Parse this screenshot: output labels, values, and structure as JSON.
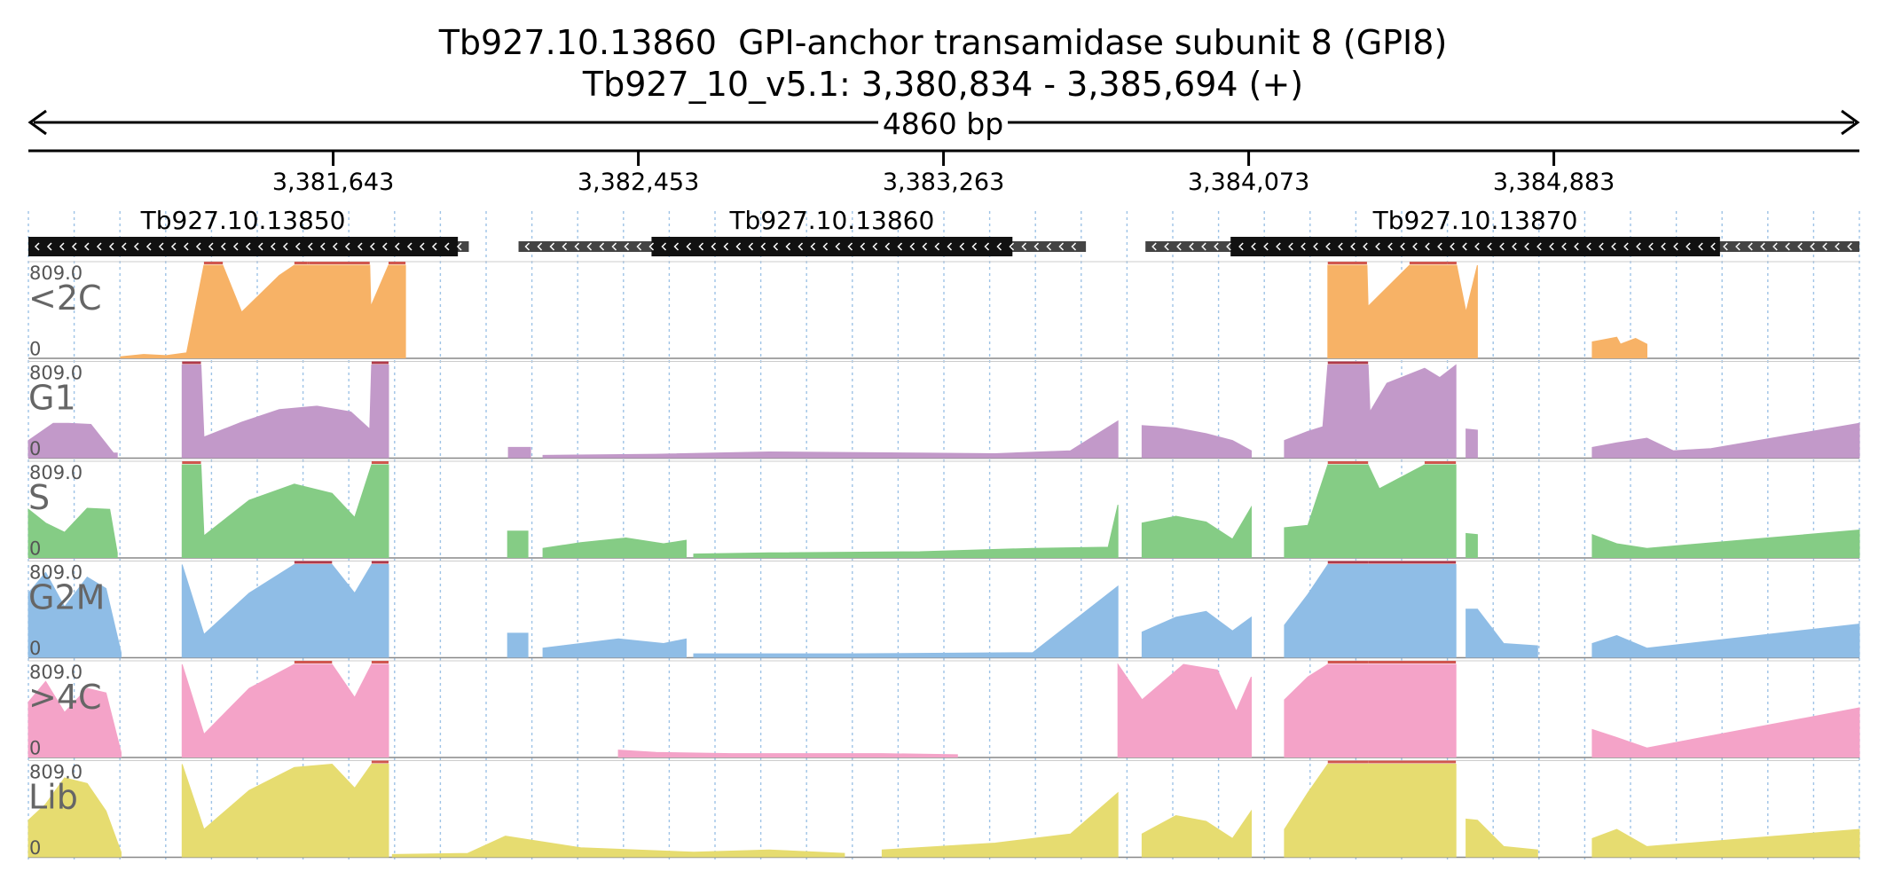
{
  "title": {
    "gene_line": "Tb927.10.13860  GPI-anchor transamidase subunit 8 (GPI8)",
    "locus_line": "Tb927_10_v5.1: 3,380,834 - 3,385,694 (+)"
  },
  "chart_data": {
    "type": "area",
    "region": {
      "start": 3380834,
      "end": 3385694,
      "length_label": "4860 bp"
    },
    "ruler_ticks": [
      {
        "pos": 3381643,
        "label": "3,381,643"
      },
      {
        "pos": 3382453,
        "label": "3,382,453"
      },
      {
        "pos": 3383263,
        "label": "3,383,263"
      },
      {
        "pos": 3384073,
        "label": "3,384,073"
      },
      {
        "pos": 3384883,
        "label": "3,384,883"
      }
    ],
    "genes": [
      {
        "name": "Tb927.10.13850",
        "strand": "-",
        "utr": [
          3380834,
          3382003
        ],
        "cds": [
          3380834,
          3381974
        ]
      },
      {
        "name": "Tb927.10.13860",
        "strand": "-",
        "utr": [
          3382135,
          3383641
        ],
        "cds": [
          3382488,
          3383446
        ]
      },
      {
        "name": "Tb927.10.13870",
        "strand": "-",
        "utr": [
          3383799,
          3385694
        ],
        "cds": [
          3384025,
          3385324
        ]
      }
    ],
    "ymax_label": "809.0",
    "ymin_label": "0",
    "ylim": [
      0,
      809
    ],
    "tracks": [
      {
        "name": "<2C",
        "color": "#f7b266",
        "clip_color": "#d0574f",
        "segments": [
          {
            "x": [
              3381079,
              3381139,
              3381142,
              3381200,
              3381254,
              3381300,
              3381350,
              3381400,
              3381450,
              3381500,
              3381540,
              3381574,
              3381580,
              3381740,
              3381743,
              3381790
            ],
            "y": [
              10,
              30,
              30,
              20,
              45,
              809,
              809,
              400,
              560,
              720,
              809,
              809,
              809,
              809,
              450,
              809
            ]
          },
          {
            "x": [
              3381790,
              3381835
            ],
            "y": [
              809,
              809
            ]
          },
          {
            "x": [
              3384283,
              3384387,
              3384390,
              3384500,
              3384600,
              3384623,
              3384625,
              3384650,
              3384680
            ],
            "y": [
              809,
              809,
              450,
              809,
              809,
              809,
              809,
              400,
              809
            ]
          },
          {
            "x": [
              3384985,
              3385050,
              3385060,
              3385100,
              3385130
            ],
            "y": [
              140,
              180,
              120,
              170,
              120
            ]
          }
        ]
      },
      {
        "name": "G1",
        "color": "#c299c9",
        "clip_color": "#b03a4a",
        "segments": [
          {
            "x": [
              3380834,
              3380900,
              3380940,
              3381000,
              3381060,
              3381070
            ],
            "y": [
              150,
              300,
              300,
              290,
              40,
              40
            ]
          },
          {
            "x": [
              3381242,
              3381292,
              3381300,
              3381400,
              3381500,
              3381600,
              3381690,
              3381740,
              3381745,
              3381790
            ],
            "y": [
              809,
              809,
              180,
              310,
              420,
              450,
              400,
              250,
              809,
              809
            ]
          },
          {
            "x": [
              3382108,
              3382167
            ],
            "y": [
              90,
              90
            ]
          },
          {
            "x": [
              3382200,
              3382500,
              3382800,
              3383200,
              3383400,
              3383600,
              3383726
            ],
            "y": [
              20,
              30,
              50,
              40,
              35,
              60,
              320
            ]
          },
          {
            "x": [
              3383790,
              3383880,
              3383960,
              3384030,
              3384080
            ],
            "y": [
              280,
              260,
              210,
              150,
              60
            ]
          },
          {
            "x": [
              3384168,
              3384230,
              3384270,
              3384283,
              3384390,
              3384395,
              3384440,
              3384540,
              3384580,
              3384623
            ],
            "y": [
              150,
              230,
              270,
              809,
              809,
              400,
              650,
              780,
              700,
              809
            ]
          },
          {
            "x": [
              3384650,
              3384680
            ],
            "y": [
              250,
              240
            ]
          },
          {
            "x": [
              3384985,
              3385050,
              3385130,
              3385200,
              3385300,
              3385694
            ],
            "y": [
              90,
              130,
              170,
              60,
              80,
              300
            ]
          }
        ]
      },
      {
        "name": "S",
        "color": "#85cc85",
        "clip_color": "#d0574f",
        "segments": [
          {
            "x": [
              3380834,
              3380880,
              3380930,
              3380990,
              3381050,
              3381070
            ],
            "y": [
              420,
              300,
              220,
              430,
              420,
              40
            ]
          },
          {
            "x": [
              3381242,
              3381292,
              3381300,
              3381420,
              3381540,
              3381640,
              3381700,
              3381745,
              3381790
            ],
            "y": [
              809,
              809,
              190,
              500,
              640,
              560,
              350,
              809,
              809
            ]
          },
          {
            "x": [
              3382106,
              3382160
            ],
            "y": [
              230,
              230
            ]
          },
          {
            "x": [
              3382200,
              3382300,
              3382420,
              3382520,
              3382580
            ],
            "y": [
              80,
              130,
              170,
              120,
              150
            ]
          },
          {
            "x": [
              3382600,
              3382800,
              3383200,
              3383500,
              3383700,
              3383726
            ],
            "y": [
              30,
              40,
              50,
              80,
              90,
              460
            ]
          },
          {
            "x": [
              3383790,
              3383880,
              3383960,
              3384030,
              3384080
            ],
            "y": [
              300,
              360,
              310,
              160,
              440
            ]
          },
          {
            "x": [
              3384168,
              3384230,
              3384283,
              3384390,
              3384420,
              3384540,
              3384623
            ],
            "y": [
              260,
              280,
              809,
              809,
              600,
              809,
              809
            ]
          },
          {
            "x": [
              3384650,
              3384680
            ],
            "y": [
              210,
              200
            ]
          },
          {
            "x": [
              3384985,
              3385050,
              3385130,
              3385694
            ],
            "y": [
              200,
              120,
              80,
              240
            ]
          }
        ]
      },
      {
        "name": "G2M",
        "color": "#8fbde6",
        "clip_color": "#b03a4a",
        "segments": [
          {
            "x": [
              3380834,
              3380880,
              3380930,
              3380990,
              3381040,
              3381080
            ],
            "y": [
              560,
              740,
              440,
              700,
              600,
              40
            ]
          },
          {
            "x": [
              3381242,
              3381300,
              3381420,
              3381540,
              3381640,
              3381700,
              3381745,
              3381790
            ],
            "y": [
              809,
              200,
              560,
              809,
              809,
              560,
              809,
              809
            ]
          },
          {
            "x": [
              3382106,
              3382160
            ],
            "y": [
              210,
              210
            ]
          },
          {
            "x": [
              3382200,
              3382400,
              3382520,
              3382580
            ],
            "y": [
              80,
              160,
              120,
              160
            ]
          },
          {
            "x": [
              3382600,
              3383000,
              3383500,
              3383726
            ],
            "y": [
              30,
              30,
              40,
              620
            ]
          },
          {
            "x": [
              3383790,
              3383880,
              3383960,
              3384030,
              3384080
            ],
            "y": [
              220,
              350,
              400,
              230,
              350
            ]
          },
          {
            "x": [
              3384168,
              3384230,
              3384283,
              3384390,
              3384623
            ],
            "y": [
              280,
              550,
              809,
              809,
              809
            ]
          },
          {
            "x": [
              3384650,
              3384680,
              3384750,
              3384840
            ],
            "y": [
              420,
              420,
              120,
              100
            ]
          },
          {
            "x": [
              3384985,
              3385050,
              3385130,
              3385694
            ],
            "y": [
              120,
              190,
              80,
              290
            ]
          }
        ]
      },
      {
        "name": ">4C",
        "color": "#f4a3c8",
        "clip_color": "#d0574f",
        "segments": [
          {
            "x": [
              3380834,
              3380880,
              3380930,
              3380990,
              3381040,
              3381080
            ],
            "y": [
              480,
              660,
              390,
              600,
              560,
              40
            ]
          },
          {
            "x": [
              3381242,
              3381300,
              3381420,
              3381540,
              3381640,
              3381700,
              3381745,
              3381790
            ],
            "y": [
              809,
              200,
              600,
              809,
              809,
              520,
              809,
              809
            ]
          },
          {
            "x": [
              3382400,
              3382500,
              3382700,
              3383100,
              3383300
            ],
            "y": [
              60,
              40,
              30,
              30,
              20
            ]
          },
          {
            "x": [
              3383726,
              3383790,
              3383900,
              3383990,
              3384040,
              3384080
            ],
            "y": [
              809,
              500,
              809,
              760,
              400,
              700
            ]
          },
          {
            "x": [
              3384168,
              3384230,
              3384283,
              3384390,
              3384623
            ],
            "y": [
              500,
              700,
              809,
              809,
              809
            ]
          },
          {
            "x": [
              3384985,
              3385050,
              3385130,
              3385694
            ],
            "y": [
              240,
              170,
              80,
              430
            ]
          }
        ]
      },
      {
        "name": "Lib",
        "color": "#e6dc70",
        "clip_color": "#d0574f",
        "segments": [
          {
            "x": [
              3380834,
              3380880,
              3380930,
              3380990,
              3381040,
              3381080
            ],
            "y": [
              320,
              460,
              690,
              640,
              400,
              40
            ]
          },
          {
            "x": [
              3381242,
              3381300,
              3381420,
              3381540,
              3381640,
              3381700,
              3381745,
              3381790
            ],
            "y": [
              809,
              240,
              580,
              780,
              809,
              600,
              809,
              809
            ]
          },
          {
            "x": [
              3381800,
              3382000,
              3382100,
              3382300,
              3382600,
              3382800,
              3383000
            ],
            "y": [
              20,
              30,
              180,
              80,
              40,
              60,
              30
            ]
          },
          {
            "x": [
              3383100,
              3383400,
              3383600,
              3383726
            ],
            "y": [
              60,
              120,
              200,
              560
            ]
          },
          {
            "x": [
              3383790,
              3383880,
              3383960,
              3384030,
              3384080
            ],
            "y": [
              200,
              360,
              310,
              160,
              400
            ]
          },
          {
            "x": [
              3384168,
              3384230,
              3384283,
              3384390,
              3384623
            ],
            "y": [
              240,
              560,
              809,
              809,
              809
            ]
          },
          {
            "x": [
              3384650,
              3384680,
              3384750,
              3384840
            ],
            "y": [
              330,
              320,
              90,
              60
            ]
          },
          {
            "x": [
              3384985,
              3385050,
              3385130,
              3385694
            ],
            "y": [
              160,
              240,
              90,
              240
            ]
          }
        ]
      }
    ]
  }
}
